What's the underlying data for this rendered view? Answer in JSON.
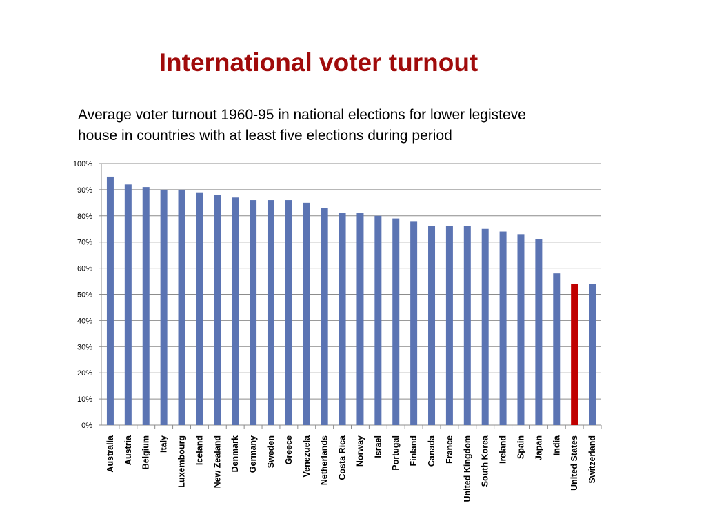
{
  "slide": {
    "title": "International voter turnout",
    "subtitle_lines": [
      "Average voter turnout 1960-95 in national elections for lower legisteve",
      "house in countries with at least five elections during period"
    ]
  },
  "chart_data": {
    "type": "bar",
    "title": "",
    "xlabel": "",
    "ylabel": "",
    "ylim": [
      0,
      100
    ],
    "yticks": [
      "0%",
      "10%",
      "20%",
      "30%",
      "40%",
      "50%",
      "60%",
      "70%",
      "80%",
      "90%",
      "100%"
    ],
    "grid": true,
    "legend": "none",
    "categories": [
      "Australia",
      "Austria",
      "Belgium",
      "Italy",
      "Luxembourg",
      "Iceland",
      "New Zealand",
      "Denmark",
      "Germany",
      "Sweden",
      "Greece",
      "Venezuela",
      "Netherlands",
      "Costa Rica",
      "Norway",
      "Israel",
      "Portugal",
      "Finland",
      "Canada",
      "France",
      "United Kingdom",
      "South Korea",
      "Ireland",
      "Spain",
      "Japan",
      "India",
      "United States",
      "Switzerland"
    ],
    "values": [
      95,
      92,
      91,
      90,
      90,
      89,
      88,
      87,
      86,
      86,
      86,
      85,
      83,
      81,
      81,
      80,
      79,
      78,
      76,
      76,
      76,
      75,
      74,
      73,
      71,
      58,
      54,
      54
    ],
    "highlight": "United States",
    "colors": {
      "bar": "#5b74b3",
      "highlight": "#c00000",
      "title": "#a00b0b"
    }
  }
}
